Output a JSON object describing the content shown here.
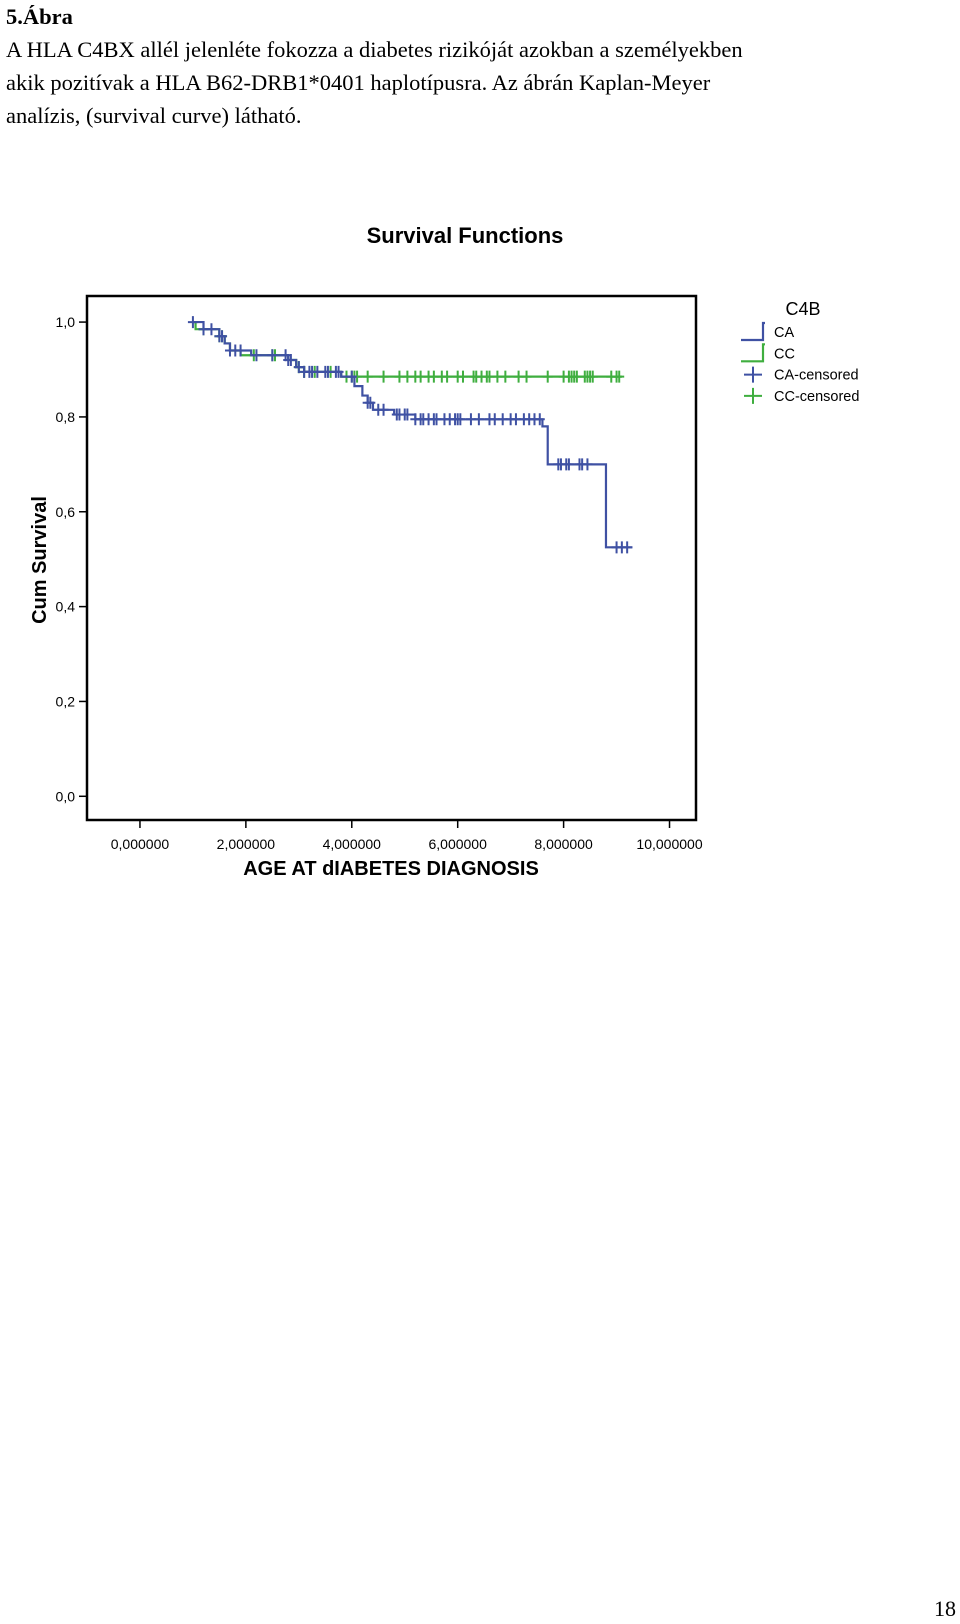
{
  "caption": {
    "figure_label": "5.Ábra",
    "lines": [
      "A HLA C4BX allél jelenléte fokozza a diabetes rizikóját azokban a személyekben",
      "akik pozitívak a HLA B62-DRB1*0401 haplotípusra. Az ábrán Kaplan-Meyer",
      "analízis, (survival curve) látható."
    ]
  },
  "page_number": "18",
  "chart_data": {
    "type": "line",
    "subtype": "kaplan-meier-step",
    "title": "Survival Functions",
    "xlabel": "AGE AT dIABETES DIAGNOSIS",
    "ylabel": "Cum Survival",
    "xlim": [
      -1.0,
      10.5
    ],
    "ylim": [
      -0.05,
      1.055
    ],
    "x_ticks": [
      0,
      2,
      4,
      6,
      8,
      10
    ],
    "x_tick_labels": [
      "0,000000",
      "2,000000",
      "4,000000",
      "6,000000",
      "8,000000",
      "10,000000"
    ],
    "y_ticks": [
      0.0,
      0.2,
      0.4,
      0.6,
      0.8,
      1.0
    ],
    "y_tick_labels": [
      "0,0",
      "0,2",
      "0,4",
      "0,6",
      "0,8",
      "1,0"
    ],
    "grid": false,
    "legend": {
      "title": "C4B",
      "placement": "right",
      "entries": [
        {
          "label": "CA",
          "kind": "step",
          "color": "#3f51a3"
        },
        {
          "label": "CC",
          "kind": "step",
          "color": "#3fae3f"
        },
        {
          "label": "CA-censored",
          "kind": "cross",
          "color": "#3f51a3"
        },
        {
          "label": "CC-censored",
          "kind": "cross",
          "color": "#3fae3f"
        }
      ]
    },
    "series": [
      {
        "name": "CA",
        "color": "#3f51a3",
        "steps": [
          [
            1.0,
            1.0
          ],
          [
            1.2,
            0.985
          ],
          [
            1.5,
            0.97
          ],
          [
            1.6,
            0.955
          ],
          [
            1.7,
            0.94
          ],
          [
            2.1,
            0.93
          ],
          [
            2.8,
            0.92
          ],
          [
            2.95,
            0.905
          ],
          [
            3.1,
            0.895
          ],
          [
            3.8,
            0.885
          ],
          [
            4.05,
            0.865
          ],
          [
            4.2,
            0.845
          ],
          [
            4.3,
            0.83
          ],
          [
            4.4,
            0.815
          ],
          [
            4.8,
            0.805
          ],
          [
            5.2,
            0.795
          ],
          [
            7.6,
            0.78
          ],
          [
            7.7,
            0.7
          ],
          [
            8.8,
            0.525
          ],
          [
            9.3,
            0.525
          ]
        ],
        "censored_x": [
          1.0,
          1.2,
          1.35,
          1.5,
          1.55,
          1.7,
          1.8,
          1.9,
          2.2,
          2.5,
          2.75,
          2.8,
          2.85,
          3.0,
          3.1,
          3.2,
          3.25,
          3.35,
          3.5,
          3.55,
          3.7,
          3.75,
          4.0,
          4.3,
          4.35,
          4.5,
          4.6,
          4.85,
          4.9,
          5.0,
          5.05,
          5.2,
          5.3,
          5.35,
          5.45,
          5.55,
          5.6,
          5.75,
          5.85,
          5.95,
          6.0,
          6.05,
          6.25,
          6.4,
          6.6,
          6.7,
          6.85,
          7.0,
          7.1,
          7.25,
          7.35,
          7.45,
          7.55,
          7.9,
          7.95,
          8.05,
          8.1,
          8.3,
          8.35,
          8.45,
          9.0,
          9.1,
          9.2
        ]
      },
      {
        "name": "CC",
        "color": "#3fae3f",
        "steps": [
          [
            1.0,
            1.0
          ],
          [
            1.05,
            0.985
          ],
          [
            1.5,
            0.97
          ],
          [
            1.6,
            0.955
          ],
          [
            1.7,
            0.94
          ],
          [
            1.9,
            0.93
          ],
          [
            2.8,
            0.92
          ],
          [
            2.95,
            0.905
          ],
          [
            3.1,
            0.895
          ],
          [
            3.8,
            0.885
          ],
          [
            9.1,
            0.885
          ]
        ],
        "censored_x": [
          1.2,
          1.5,
          1.55,
          2.15,
          2.5,
          2.55,
          3.0,
          3.1,
          3.3,
          3.6,
          3.9,
          4.0,
          4.05,
          4.1,
          4.3,
          4.6,
          4.9,
          5.05,
          5.2,
          5.3,
          5.45,
          5.55,
          5.7,
          5.8,
          6.0,
          6.1,
          6.3,
          6.35,
          6.45,
          6.55,
          6.6,
          6.75,
          6.9,
          7.15,
          7.3,
          7.7,
          8.0,
          8.1,
          8.15,
          8.2,
          8.25,
          8.4,
          8.45,
          8.5,
          8.55,
          8.9,
          9.0,
          9.05
        ]
      }
    ]
  }
}
